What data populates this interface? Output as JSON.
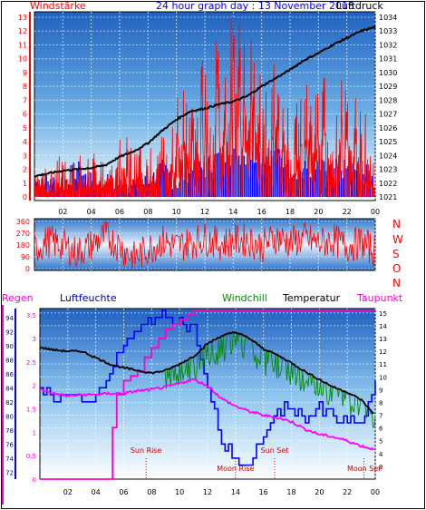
{
  "header": {
    "left_label": "Windstärke",
    "title": "24 hour graph day : 13 November 2018",
    "right_label": "Luftdruck"
  },
  "panel3_labels": {
    "regen": "Regen",
    "luftfeuchte": "Luftfeuchte",
    "windchill": "Windchill",
    "temperatur": "Temperatur",
    "taupunkt": "Taupunkt"
  },
  "compass_labels": [
    "N",
    "W",
    "S",
    "O",
    "N"
  ],
  "events": [
    {
      "label": "Sun Rise",
      "hour": 7.6
    },
    {
      "label": "Moon Rise",
      "hour": 14.0
    },
    {
      "label": "Sun Set",
      "hour": 16.8
    },
    {
      "label": "Moon Set",
      "hour": 23.2
    }
  ],
  "chart_data": [
    {
      "type": "line",
      "x_ticks": [
        "02",
        "04",
        "06",
        "08",
        "10",
        "12",
        "14",
        "16",
        "18",
        "20",
        "22",
        "00"
      ],
      "y_left_ticks": [
        "0",
        "1",
        "2",
        "3",
        "4",
        "5",
        "6",
        "7",
        "8",
        "9",
        "10",
        "11",
        "12",
        "13"
      ],
      "y_right_ticks": [
        "1021",
        "1022",
        "1023",
        "1024",
        "1025",
        "1026",
        "1027",
        "1028",
        "1029",
        "1030",
        "1031",
        "1032",
        "1033",
        "1034"
      ],
      "xlim": [
        0,
        24
      ],
      "ylim_left": [
        0,
        13
      ],
      "ylim_right": [
        1021,
        1034
      ],
      "series": [
        {
          "name": "Windstärke",
          "color": "#ff0000",
          "hours": [
            0,
            0.5,
            1,
            1.5,
            2,
            2.5,
            3,
            3.5,
            4,
            4.5,
            5,
            5.5,
            6,
            6.5,
            7,
            7.5,
            8,
            8.5,
            9,
            9.5,
            10,
            10.5,
            11,
            11.5,
            12,
            12.5,
            13,
            13.5,
            14,
            14.5,
            15,
            15.5,
            16,
            16.5,
            17,
            17.5,
            18,
            18.5,
            19,
            19.5,
            20,
            20.5,
            21,
            21.5,
            22,
            22.5,
            23,
            23.5,
            24
          ],
          "values": [
            2,
            2,
            1,
            2,
            2,
            2,
            2,
            2,
            3,
            2,
            2,
            2,
            3,
            3,
            2,
            3,
            3,
            2,
            3,
            3,
            5,
            6,
            5,
            6,
            7,
            6,
            9,
            7,
            12,
            8,
            9,
            7,
            6,
            5,
            7,
            5,
            6,
            5,
            6,
            5,
            6,
            6,
            5,
            6,
            5,
            6,
            5,
            4,
            2
          ]
        },
        {
          "name": "Windgust",
          "color": "#0000ff",
          "hours": [
            0,
            1,
            2,
            3,
            4,
            5,
            6,
            7,
            8,
            9,
            10,
            11,
            12,
            13,
            14,
            15,
            16,
            17,
            18,
            19,
            20,
            21,
            22,
            23,
            24
          ],
          "values": [
            1,
            1,
            1,
            2,
            1,
            1,
            1,
            1,
            1,
            2,
            1,
            2,
            2,
            3,
            3,
            3,
            3,
            3,
            2,
            2,
            2,
            2,
            2,
            2,
            1
          ]
        },
        {
          "name": "Luftdruck",
          "color": "#000000",
          "hours": [
            0,
            1,
            2,
            3,
            4,
            5,
            6,
            7,
            8,
            9,
            10,
            11,
            12,
            13,
            14,
            15,
            16,
            17,
            18,
            19,
            20,
            21,
            22,
            23,
            24
          ],
          "values": [
            1022.5,
            1022.7,
            1022.9,
            1023.0,
            1023.1,
            1023.3,
            1023.9,
            1024.3,
            1024.9,
            1025.8,
            1026.6,
            1027.2,
            1027.4,
            1027.7,
            1027.9,
            1028.3,
            1029.0,
            1029.6,
            1030.2,
            1030.9,
            1031.4,
            1032.0,
            1032.5,
            1033.0,
            1033.3
          ]
        }
      ]
    },
    {
      "type": "line",
      "y_ticks": [
        "0",
        "90",
        "180",
        "270",
        "360"
      ],
      "ylim": [
        0,
        360
      ],
      "series": [
        {
          "name": "Windrichtung",
          "color": "#ff0000",
          "hours": [
            0,
            1,
            2,
            3,
            4,
            5,
            6,
            7,
            8,
            9,
            10,
            11,
            12,
            13,
            14,
            15,
            16,
            17,
            18,
            19,
            20,
            21,
            22,
            23,
            24
          ],
          "values": [
            150,
            210,
            180,
            120,
            180,
            250,
            170,
            80,
            150,
            210,
            170,
            200,
            230,
            190,
            210,
            220,
            170,
            240,
            200,
            230,
            190,
            220,
            170,
            200,
            130
          ]
        }
      ]
    },
    {
      "type": "line",
      "y_left_ticks": [
        "0",
        "0.5",
        "1",
        "1.5",
        "2",
        "2.5",
        "3",
        "3.5"
      ],
      "ylim_left": [
        0,
        3.6
      ],
      "y_hum_ticks": [
        "72",
        "74",
        "76",
        "78",
        "80",
        "82",
        "84",
        "86",
        "88",
        "90",
        "92",
        "94"
      ],
      "ylim_hum": [
        71,
        95
      ],
      "y_right_ticks": [
        "3",
        "4",
        "5",
        "6",
        "7",
        "8",
        "9",
        "10",
        "11",
        "12",
        "13",
        "14",
        "15"
      ],
      "ylim_right": [
        2,
        15.2
      ],
      "series": [
        {
          "name": "Regen",
          "color": "#ff00cc",
          "hours": [
            0,
            3,
            4.9,
            5.2,
            5.5,
            6,
            6.5,
            7,
            7.5,
            8,
            8.5,
            9,
            9.5,
            10,
            10.5,
            11,
            12,
            14,
            16,
            18,
            20,
            22,
            24
          ],
          "values": [
            0,
            0,
            0,
            1.1,
            1.8,
            2.1,
            2.2,
            2.3,
            2.6,
            2.8,
            3.0,
            3.2,
            3.3,
            3.4,
            3.5,
            3.6,
            3.6,
            3.6,
            3.6,
            3.6,
            3.6,
            3.6,
            3.6
          ]
        },
        {
          "name": "Luftfeuchte",
          "color": "#0000ff",
          "hours": [
            0,
            1,
            2,
            3,
            4,
            5,
            6,
            7,
            7.5,
            8,
            9,
            10,
            11,
            12,
            13,
            14,
            15,
            16,
            17,
            18,
            19,
            20,
            21,
            22,
            23,
            24
          ],
          "values": [
            84,
            83,
            83,
            82,
            83,
            86,
            90,
            92,
            93,
            94,
            94,
            94,
            92,
            84,
            76,
            74,
            73,
            77,
            81,
            81,
            80,
            81,
            80,
            79,
            79,
            84
          ]
        },
        {
          "name": "Temperatur",
          "color": "#000000",
          "hours": [
            0,
            1,
            2,
            3,
            4,
            5,
            6,
            7,
            8,
            9,
            10,
            11,
            12,
            13,
            14,
            15,
            16,
            17,
            18,
            19,
            20,
            21,
            22,
            23,
            24
          ],
          "values": [
            12.3,
            12.1,
            12.0,
            12.0,
            11.5,
            11.0,
            10.7,
            10.5,
            10.3,
            10.5,
            11.0,
            11.6,
            12.6,
            13.2,
            13.5,
            13.0,
            12.2,
            11.7,
            11.1,
            10.4,
            9.8,
            9.2,
            8.8,
            8.2,
            7.0
          ]
        },
        {
          "name": "Windchill",
          "color": "#008800",
          "hours": [
            0,
            1,
            2,
            3,
            4,
            5,
            6,
            7,
            8,
            9,
            10,
            11,
            12,
            13,
            14,
            15,
            16,
            17,
            18,
            19,
            20,
            21,
            22,
            23,
            24
          ],
          "values": [
            12.3,
            12.1,
            12.0,
            12.0,
            11.5,
            11.0,
            10.7,
            10.5,
            10.3,
            10.2,
            10.5,
            10.8,
            11.8,
            12.2,
            13.0,
            12.2,
            11.3,
            11.0,
            10.5,
            9.8,
            9.3,
            8.7,
            8.2,
            7.6,
            7.0
          ]
        },
        {
          "name": "Taupunkt",
          "color": "#ff00ff",
          "hours": [
            0,
            1,
            2,
            3,
            4,
            5,
            6,
            7,
            8,
            9,
            10,
            11,
            12,
            13,
            14,
            15,
            16,
            17,
            18,
            19,
            20,
            21,
            22,
            23,
            24
          ],
          "values": [
            9.0,
            8.7,
            8.5,
            8.6,
            8.6,
            8.7,
            8.7,
            8.9,
            9.0,
            9.2,
            9.5,
            9.8,
            9.3,
            8.3,
            7.7,
            7.3,
            7.0,
            6.8,
            6.5,
            5.9,
            5.5,
            5.3,
            5.0,
            4.6,
            4.3
          ]
        }
      ]
    }
  ]
}
